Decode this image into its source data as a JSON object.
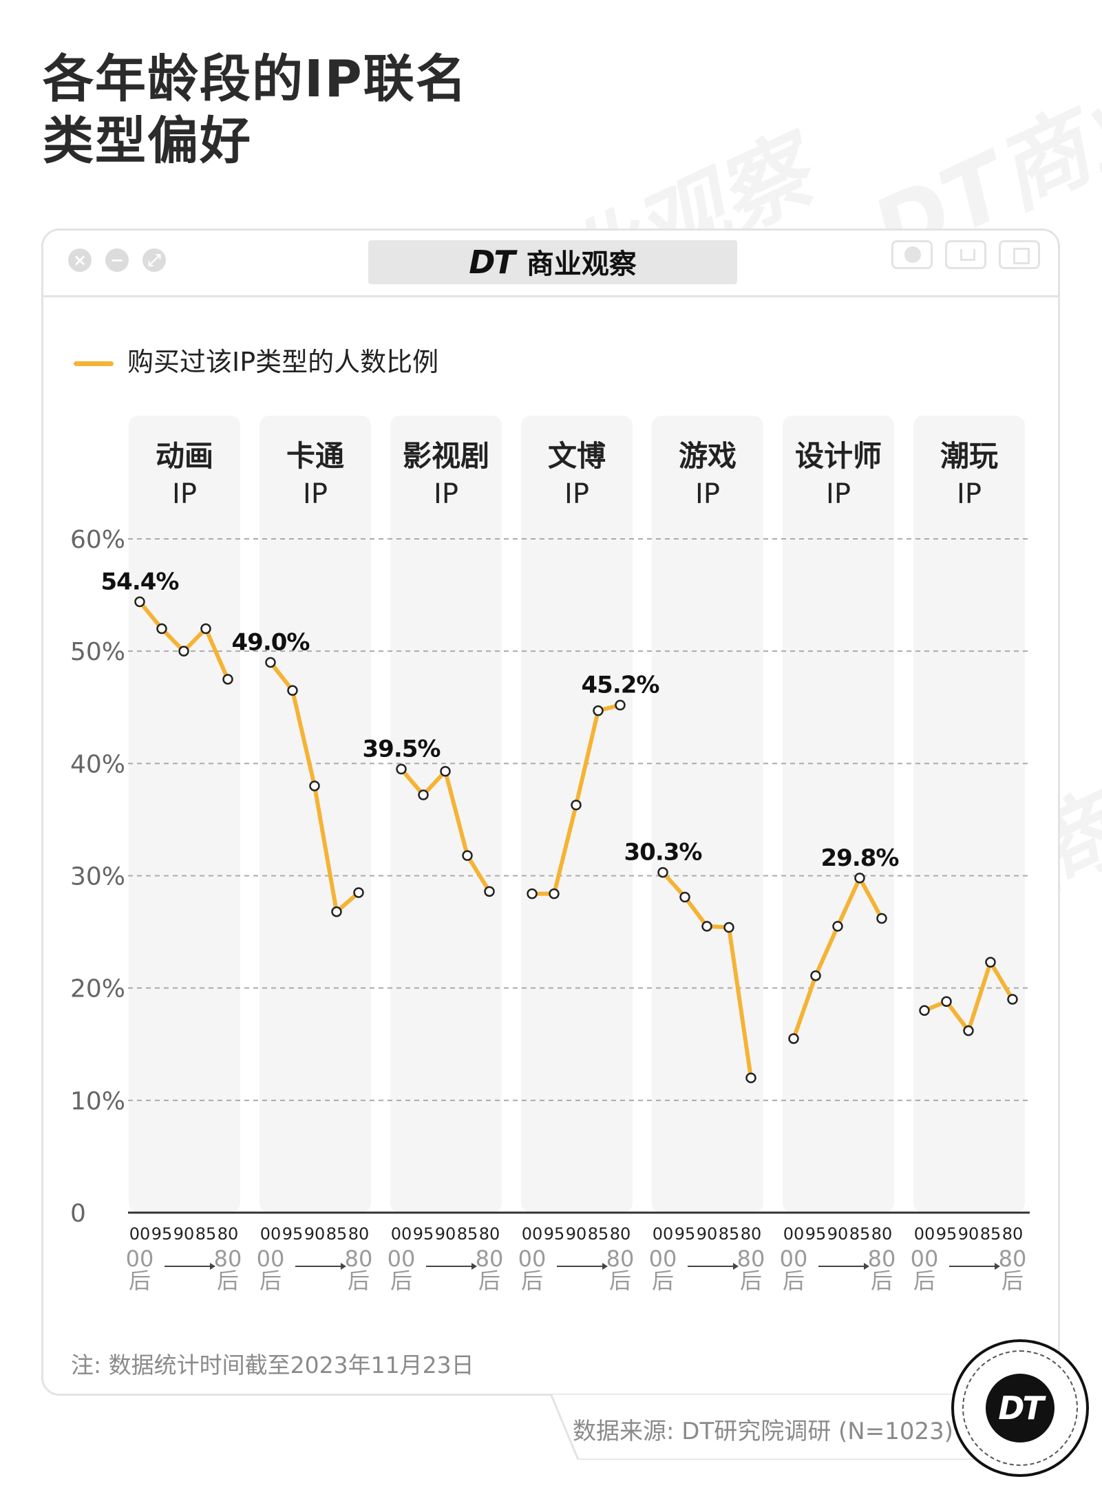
{
  "title_line1": "各年龄段的IP联名",
  "title_line2": "类型偏好",
  "brand": {
    "logo": "DT",
    "name": "商业观察"
  },
  "legend": "购买过该IP类型的人数比例",
  "note": "注: 数据统计时间截至2023年11月23日",
  "source": "数据来源: DT研究院调研 (N=1023)",
  "badge": "DT",
  "watermark": "DT商业观察",
  "colors": {
    "line": "#f5b335",
    "panel": "#f5f5f5",
    "grid": "#aaaaaa"
  },
  "chart_data": {
    "type": "line",
    "ylim": [
      0,
      60
    ],
    "yticks": [
      "0",
      "10%",
      "20%",
      "30%",
      "40%",
      "50%",
      "60%"
    ],
    "ytick_values": [
      0,
      10,
      20,
      30,
      40,
      50,
      60
    ],
    "x_ticks": [
      "00",
      "95",
      "90",
      "85",
      "80"
    ],
    "x_range_labels": [
      "00\n后",
      "80\n后"
    ],
    "panels": [
      {
        "name1": "动画",
        "name2": "IP",
        "values": [
          54.4,
          52.0,
          50.0,
          52.0,
          47.5
        ],
        "peak_label": "54.4%",
        "peak_index": 0
      },
      {
        "name1": "卡通",
        "name2": "IP",
        "values": [
          49.0,
          46.5,
          38.0,
          26.8,
          28.5
        ],
        "peak_label": "49.0%",
        "peak_index": 0
      },
      {
        "name1": "影视剧",
        "name2": "IP",
        "values": [
          39.5,
          37.2,
          39.3,
          31.8,
          28.6
        ],
        "peak_label": "39.5%",
        "peak_index": 0
      },
      {
        "name1": "文博",
        "name2": "IP",
        "values": [
          28.4,
          28.4,
          36.3,
          44.7,
          45.2
        ],
        "peak_label": "45.2%",
        "peak_index": 4
      },
      {
        "name1": "游戏",
        "name2": "IP",
        "values": [
          30.3,
          28.1,
          25.5,
          25.4,
          12.0
        ],
        "peak_label": "30.3%",
        "peak_index": 0
      },
      {
        "name1": "设计师",
        "name2": "IP",
        "values": [
          15.5,
          21.1,
          25.5,
          29.8,
          26.2
        ],
        "peak_label": "29.8%",
        "peak_index": 3
      },
      {
        "name1": "潮玩",
        "name2": "IP",
        "values": [
          18.0,
          18.8,
          16.2,
          22.3,
          19.0
        ],
        "peak_label": "",
        "peak_index": -1
      }
    ]
  }
}
